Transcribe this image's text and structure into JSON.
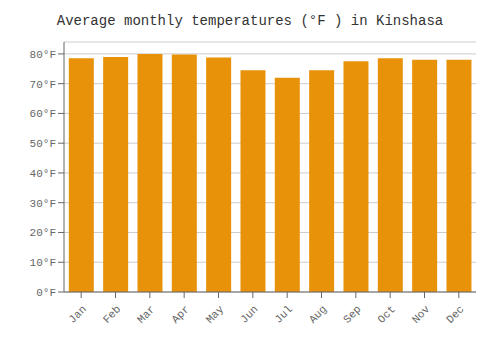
{
  "chart_data": {
    "type": "bar",
    "title": "Average monthly temperatures (°F ) in Kinshasa",
    "categories": [
      "Jan",
      "Feb",
      "Mar",
      "Apr",
      "May",
      "Jun",
      "Jul",
      "Aug",
      "Sep",
      "Oct",
      "Nov",
      "Dec"
    ],
    "values": [
      78.5,
      79.0,
      80.0,
      79.8,
      78.8,
      74.5,
      72.0,
      74.5,
      77.5,
      78.5,
      78.0,
      78.0
    ],
    "color": "#E8920A",
    "ylim": [
      0,
      84
    ],
    "yticks": [
      {
        "value": 0,
        "label": "0°F"
      },
      {
        "value": 10,
        "label": "10°F"
      },
      {
        "value": 20,
        "label": "20°F"
      },
      {
        "value": 30,
        "label": "30°F"
      },
      {
        "value": 40,
        "label": "40°F"
      },
      {
        "value": 50,
        "label": "50°F"
      },
      {
        "value": 60,
        "label": "60°F"
      },
      {
        "value": 70,
        "label": "70°F"
      },
      {
        "value": 80,
        "label": "80°F"
      }
    ],
    "grid": true
  }
}
